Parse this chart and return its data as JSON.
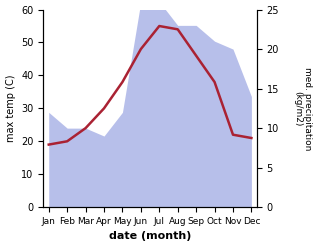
{
  "months": [
    "Jan",
    "Feb",
    "Mar",
    "Apr",
    "May",
    "Jun",
    "Jul",
    "Aug",
    "Sep",
    "Oct",
    "Nov",
    "Dec"
  ],
  "precipitation": [
    12,
    10,
    10,
    9,
    12,
    26,
    26,
    23,
    23,
    21,
    20,
    14
  ],
  "max_temp": [
    19,
    20,
    24,
    30,
    38,
    48,
    55,
    54,
    46,
    38,
    22,
    21
  ],
  "precip_color": "#b0b8e8",
  "temp_color": "#aa2233",
  "left_ylim": [
    0,
    60
  ],
  "right_ylim": [
    0,
    25
  ],
  "left_yticks": [
    0,
    10,
    20,
    30,
    40,
    50,
    60
  ],
  "right_yticks": [
    0,
    5,
    10,
    15,
    20,
    25
  ],
  "xlabel": "date (month)",
  "ylabel_left": "max temp (C)",
  "ylabel_right": "med. precipitation\n(kg/m2)",
  "bg_color": "#ffffff"
}
